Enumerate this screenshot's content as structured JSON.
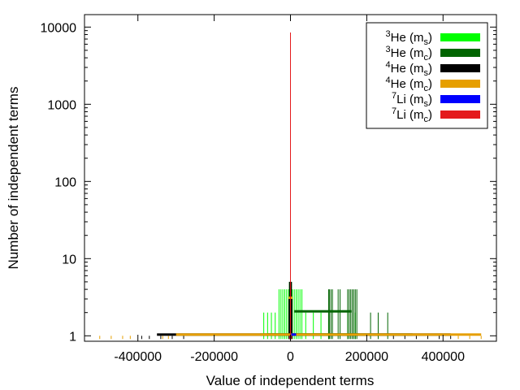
{
  "chart_data": {
    "type": "bar",
    "title": "",
    "xlabel": "Value of independent terms",
    "ylabel": "Number of independent terms",
    "xlim": [
      -540000,
      540000
    ],
    "ylim": [
      0.85,
      14500
    ],
    "yscale": "log",
    "grid": false,
    "legend_position": "top-right",
    "x_ticks": [
      {
        "value": -400000,
        "label": "-400000"
      },
      {
        "value": -200000,
        "label": "-200000"
      },
      {
        "value": 0,
        "label": "0"
      },
      {
        "value": 200000,
        "label": "200000"
      },
      {
        "value": 400000,
        "label": "400000"
      }
    ],
    "y_ticks": [
      {
        "value": 1,
        "label": "1"
      },
      {
        "value": 10,
        "label": "10"
      },
      {
        "value": 100,
        "label": "100"
      },
      {
        "value": 1000,
        "label": "1000"
      },
      {
        "value": 10000,
        "label": "10000"
      }
    ],
    "series": [
      {
        "name": "3He (ms)",
        "sup": "3",
        "elem": "He",
        "sub": "s",
        "color": "#00ff00",
        "bands": [
          {
            "x0": -80000,
            "x1": 180000,
            "y": 1
          }
        ],
        "spikes": [
          {
            "x": -70000,
            "y": 2
          },
          {
            "x": -60000,
            "y": 2
          },
          {
            "x": -50000,
            "y": 2
          },
          {
            "x": -40000,
            "y": 2
          },
          {
            "x": -30000,
            "y": 4
          },
          {
            "x": -25000,
            "y": 4
          },
          {
            "x": -20000,
            "y": 4
          },
          {
            "x": -15000,
            "y": 4
          },
          {
            "x": -10000,
            "y": 4
          },
          {
            "x": -5000,
            "y": 4
          },
          {
            "x": 5000,
            "y": 4
          },
          {
            "x": 10000,
            "y": 4
          },
          {
            "x": 15000,
            "y": 4
          },
          {
            "x": 20000,
            "y": 4
          },
          {
            "x": 25000,
            "y": 4
          },
          {
            "x": 30000,
            "y": 4
          },
          {
            "x": 40000,
            "y": 2
          },
          {
            "x": 60000,
            "y": 2
          },
          {
            "x": 80000,
            "y": 2
          },
          {
            "x": 100000,
            "y": 2
          },
          {
            "x": 150000,
            "y": 2
          },
          {
            "x": 170000,
            "y": 2
          }
        ]
      },
      {
        "name": "3He (mc)",
        "sup": "3",
        "elem": "He",
        "sub": "c",
        "color": "#006400",
        "bands": [
          {
            "x0": -60000,
            "x1": 320000,
            "y": 1
          },
          {
            "x0": 10000,
            "x1": 160000,
            "y": 2
          }
        ],
        "spikes": [
          {
            "x": 100000,
            "y": 4
          },
          {
            "x": 102000,
            "y": 4
          },
          {
            "x": 106000,
            "y": 4
          },
          {
            "x": 110000,
            "y": 4
          },
          {
            "x": 125000,
            "y": 4
          },
          {
            "x": 130000,
            "y": 4
          },
          {
            "x": 150000,
            "y": 4
          },
          {
            "x": 154000,
            "y": 4
          },
          {
            "x": 158000,
            "y": 4
          },
          {
            "x": 162000,
            "y": 4
          },
          {
            "x": 166000,
            "y": 4
          },
          {
            "x": 170000,
            "y": 4
          },
          {
            "x": 174000,
            "y": 4
          },
          {
            "x": -3000,
            "y": 5
          },
          {
            "x": 0,
            "y": 8
          },
          {
            "x": 3000,
            "y": 5
          },
          {
            "x": 210000,
            "y": 2
          },
          {
            "x": 230000,
            "y": 2
          },
          {
            "x": 255000,
            "y": 2
          }
        ]
      },
      {
        "name": "4He (ms)",
        "sup": "4",
        "elem": "He",
        "sub": "s",
        "color": "#000000",
        "bands": [
          {
            "x0": -350000,
            "x1": 420000,
            "y": 1
          }
        ],
        "spikes": [
          {
            "x": -390000,
            "y": 1
          },
          {
            "x": -370000,
            "y": 1
          },
          {
            "x": -340000,
            "y": 1
          },
          {
            "x": -310000,
            "y": 1
          },
          {
            "x": -280000,
            "y": 1
          },
          {
            "x": 270000,
            "y": 1
          },
          {
            "x": 300000,
            "y": 1
          },
          {
            "x": 330000,
            "y": 1
          },
          {
            "x": 360000,
            "y": 1
          },
          {
            "x": 390000,
            "y": 1
          },
          {
            "x": 420000,
            "y": 1
          },
          {
            "x": -4000,
            "y": 3
          },
          {
            "x": -2000,
            "y": 5
          },
          {
            "x": 2000,
            "y": 5
          },
          {
            "x": 4000,
            "y": 3
          }
        ]
      },
      {
        "name": "4He (mc)",
        "sup": "4",
        "elem": "He",
        "sub": "c",
        "color": "#e69f00",
        "bands": [
          {
            "x0": -300000,
            "x1": 500000,
            "y": 1
          },
          {
            "x0": -5000,
            "x1": 5000,
            "y": 3
          }
        ],
        "spikes": [
          {
            "x": -500000,
            "y": 1
          },
          {
            "x": -470000,
            "y": 1
          },
          {
            "x": -440000,
            "y": 1
          },
          {
            "x": -420000,
            "y": 1
          },
          {
            "x": -335000,
            "y": 1
          },
          {
            "x": -320000,
            "y": 1
          },
          {
            "x": 440000,
            "y": 1
          },
          {
            "x": 470000,
            "y": 1
          },
          {
            "x": 500000,
            "y": 1
          }
        ]
      },
      {
        "name": "7Li (ms)",
        "sup": "7",
        "elem": "Li",
        "sub": "s",
        "color": "#0000ff",
        "bands": [
          {
            "x0": 2000,
            "x1": 15000,
            "y": 1
          }
        ],
        "spikes": [
          {
            "x": -1500,
            "y": 1
          }
        ]
      },
      {
        "name": "7Li (mc)",
        "sup": "7",
        "elem": "Li",
        "sub": "c",
        "color": "#e41a1c",
        "bands": [],
        "spikes": [
          {
            "x": 0,
            "y": 8500
          },
          {
            "x": -2500,
            "y": 1
          },
          {
            "x": 2500,
            "y": 1
          }
        ]
      }
    ]
  }
}
